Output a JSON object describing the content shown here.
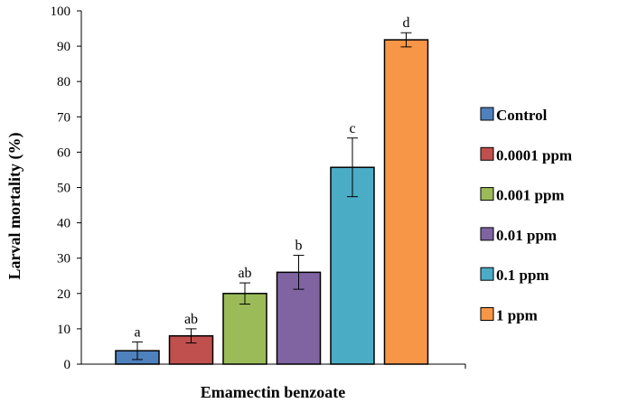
{
  "chart_data": {
    "type": "bar",
    "title": "",
    "xlabel": "Emamectin benzoate",
    "ylabel": "Larval mortality (%)",
    "ylim": [
      0,
      100
    ],
    "yticks": [
      "0",
      "10",
      "20",
      "30",
      "40",
      "50",
      "60",
      "70",
      "80",
      "90",
      "100"
    ],
    "grid": false,
    "legend_position": "right",
    "categories": [
      "Control",
      "0.0001 ppm",
      "0.001 ppm",
      "0.01 ppm",
      "0.1 ppm",
      "1 ppm"
    ],
    "values": [
      3.8,
      8.0,
      20.0,
      26.0,
      55.7,
      91.8
    ],
    "errors": [
      2.5,
      2.0,
      3.0,
      4.8,
      8.3,
      2.0
    ],
    "significance": [
      "a",
      "ab",
      "ab",
      "b",
      "c",
      "d"
    ],
    "colors": [
      "#4f81bd",
      "#c0504d",
      "#9bbb59",
      "#8064a2",
      "#4bacc6",
      "#f79646"
    ]
  }
}
